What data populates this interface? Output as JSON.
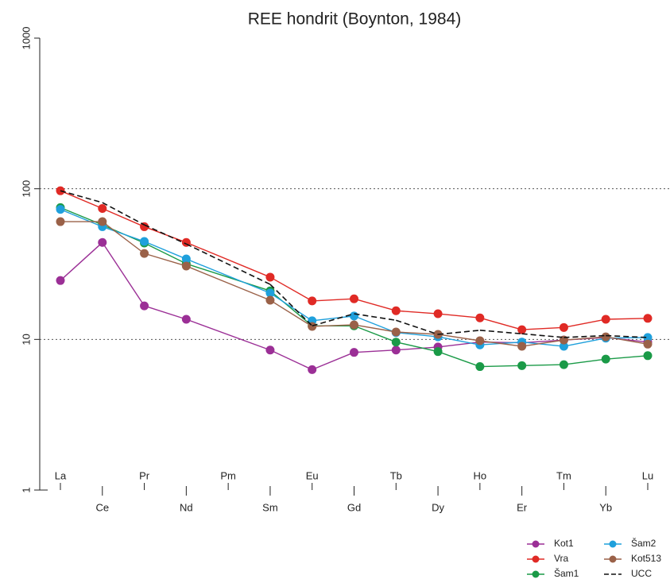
{
  "chart_data": {
    "type": "line",
    "title": "REE hondrit (Boynton, 1984)",
    "log_scale": true,
    "categories": [
      "La",
      "Ce",
      "Pr",
      "Nd",
      "Pm",
      "Sm",
      "Eu",
      "Gd",
      "Tb",
      "Dy",
      "Ho",
      "Er",
      "Tm",
      "Yb",
      "Lu"
    ],
    "ylim": [
      1,
      1000
    ],
    "yticks": [
      1,
      10,
      100,
      1000
    ],
    "reference_lines": [
      10,
      100
    ],
    "legend": "bottom-right",
    "series": [
      {
        "name": "Kot1",
        "color": "#9b2f96",
        "values": [
          24.6,
          44,
          16.7,
          13.6,
          null,
          8.5,
          6.3,
          8.2,
          8.5,
          8.9,
          9.6,
          9.5,
          9.9,
          10.3,
          9.6
        ]
      },
      {
        "name": "Vra",
        "color": "#e02a25",
        "values": [
          97,
          74,
          56,
          44,
          null,
          25.9,
          18,
          18.6,
          15.5,
          14.8,
          13.9,
          11.6,
          12,
          13.6,
          13.8
        ]
      },
      {
        "name": "Šam1",
        "color": "#1a9a47",
        "values": [
          75,
          57.6,
          43.6,
          31.8,
          null,
          21,
          12.3,
          12.3,
          9.6,
          8.3,
          6.6,
          6.7,
          6.8,
          7.4,
          7.8
        ]
      },
      {
        "name": "Šam2",
        "color": "#1fa0dc",
        "values": [
          73,
          56,
          44.7,
          34.2,
          null,
          20.3,
          13.3,
          14.3,
          11.1,
          10.4,
          9.2,
          9.6,
          9.0,
          10.2,
          10.3
        ]
      },
      {
        "name": "Kot513",
        "color": "#9a6148",
        "values": [
          60.5,
          60.5,
          37.2,
          30.7,
          null,
          18.2,
          12.2,
          12.5,
          11.2,
          10.8,
          9.8,
          9.0,
          9.9,
          10.4,
          9.3
        ]
      },
      {
        "name": "UCC",
        "color": "#111111",
        "dashed": true,
        "markers": false,
        "values": [
          97,
          81,
          57.6,
          43,
          null,
          23.2,
          12.3,
          14.8,
          13.4,
          10.8,
          11.5,
          10.9,
          10.3,
          10.6,
          10.3
        ]
      }
    ]
  }
}
